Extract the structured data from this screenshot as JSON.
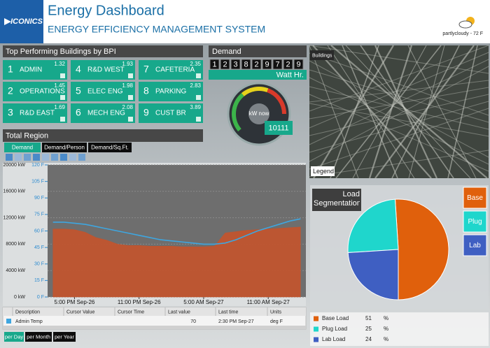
{
  "header": {
    "logo": "ICONICS",
    "title": "Energy Dashboard",
    "subtitle": "ENERGY EFFICIENCY MANAGEMENT SYSTEM",
    "weather": "partlycloudy - 72 F"
  },
  "buildings": {
    "title": "Top Performing Buildings by BPI",
    "items": [
      {
        "rank": 1,
        "name": "ADMIN",
        "bpi": 1.32
      },
      {
        "rank": 2,
        "name": "OPERATIONS",
        "bpi": 1.45
      },
      {
        "rank": 3,
        "name": "R&D EAST",
        "bpi": 1.69
      },
      {
        "rank": 4,
        "name": "R&D WEST",
        "bpi": 1.93
      },
      {
        "rank": 5,
        "name": "ELEC ENG",
        "bpi": 1.98
      },
      {
        "rank": 6,
        "name": "MECH ENG",
        "bpi": 2.08
      },
      {
        "rank": 7,
        "name": "CAFETERIA",
        "bpi": 2.35
      },
      {
        "rank": 8,
        "name": "PARKING",
        "bpi": 2.83
      },
      {
        "rank": 9,
        "name": "CUST BR",
        "bpi": 3.89
      }
    ]
  },
  "demand": {
    "title": "Demand",
    "digits": [
      1,
      2,
      3,
      8,
      2,
      9,
      7,
      2,
      9
    ],
    "unit": "Watt Hr.",
    "gauge_label": "kW now",
    "gauge_value": 10111
  },
  "map": {
    "tab": "Buildings",
    "legend": "Legend"
  },
  "total_region": {
    "title": "Total Region",
    "tabs": [
      "Demand",
      "Demand/Person",
      "Demand/Sq.Ft."
    ],
    "table": {
      "columns": [
        "Description",
        "Cursor Value",
        "Cursor Time",
        "Last value",
        "Last time",
        "Units"
      ],
      "row": {
        "description": "Admin Temp",
        "last_value": 70,
        "last_time": "2:30 PM Sep-27",
        "units": "deg F"
      }
    },
    "periods": [
      "per Day",
      "per Month",
      "per Year"
    ]
  },
  "chart_data": [
    {
      "type": "line",
      "x": [
        15,
        16,
        17,
        18,
        19,
        20,
        21,
        22,
        23,
        24,
        25,
        26,
        27,
        28,
        29,
        30,
        31,
        32,
        33,
        34,
        35,
        36,
        37,
        38
      ],
      "xlim": [
        14.5,
        38.5
      ],
      "xticks": [
        {
          "value": 17,
          "label": "5:00 PM Sep-26"
        },
        {
          "value": 23,
          "label": "11:00 PM Sep-26"
        },
        {
          "value": 29,
          "label": "5:00 AM Sep-27"
        },
        {
          "value": 35,
          "label": "11:00 AM Sep-27"
        }
      ],
      "ylim": [
        0,
        20000
      ],
      "yticks": [
        {
          "value": 0,
          "label": "0 kW"
        },
        {
          "value": 4000,
          "label": "4000 kW"
        },
        {
          "value": 8000,
          "label": "8000 kW"
        },
        {
          "value": 12000,
          "label": "12000 kW"
        },
        {
          "value": 16000,
          "label": "16000 kW"
        },
        {
          "value": 20000,
          "label": "20000 kW"
        }
      ],
      "y2lim": [
        0,
        120
      ],
      "y2ticks": [
        {
          "value": 0,
          "label": "0 F"
        },
        {
          "value": 15,
          "label": "15 F"
        },
        {
          "value": 30,
          "label": "30 F"
        },
        {
          "value": 45,
          "label": "45 F"
        },
        {
          "value": 60,
          "label": "60 F"
        },
        {
          "value": 75,
          "label": "75 F"
        },
        {
          "value": 90,
          "label": "90 F"
        },
        {
          "value": 105,
          "label": "105 F"
        },
        {
          "value": 120,
          "label": "120 F"
        }
      ],
      "grid": true,
      "series": [
        {
          "color": "#c4532b",
          "fill": true,
          "values": [
            10300,
            10300,
            10200,
            9800,
            9000,
            8600,
            8000,
            7800,
            7800,
            7700,
            7700,
            7700,
            7600,
            7600,
            7600,
            7700,
            9700,
            9900,
            10100,
            10200,
            10300,
            10400,
            10500,
            10600
          ]
        },
        {
          "color": "#3ea6e0",
          "axis": "y2",
          "values": [
            68,
            68,
            67,
            66,
            64,
            62,
            60,
            58,
            56,
            54,
            52,
            51,
            50,
            49,
            48,
            48,
            49,
            52,
            56,
            60,
            63,
            66,
            69,
            71
          ]
        }
      ]
    },
    {
      "type": "pie",
      "title": "Load Segmentation",
      "categories": [
        "Base",
        "Plug",
        "Lab"
      ],
      "legend_labels": [
        "Base Load",
        "Plug Load",
        "Lab Load"
      ],
      "values": [
        51,
        25,
        24
      ],
      "unit": "%",
      "colors": [
        "#e0600c",
        "#1fd6cc",
        "#3f5fc2"
      ]
    }
  ]
}
